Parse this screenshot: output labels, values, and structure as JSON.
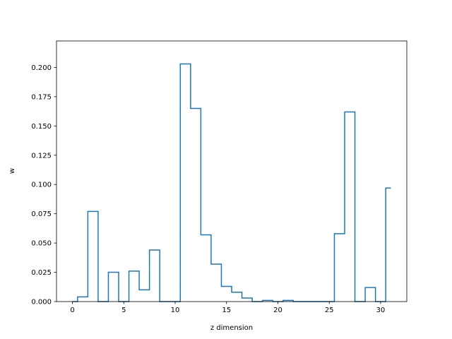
{
  "chart_data": {
    "type": "line",
    "drawstyle": "steps-mid",
    "xlabel": "z dimension",
    "ylabel": "w",
    "xlim": [
      -1.55,
      32.55
    ],
    "ylim": [
      0.0,
      0.2226
    ],
    "xticks": [
      0,
      5,
      10,
      15,
      20,
      25,
      30
    ],
    "yticks": [
      0.0,
      0.025,
      0.05,
      0.075,
      0.1,
      0.125,
      0.15,
      0.175,
      0.2
    ],
    "ytick_labels": [
      "0.000",
      "0.025",
      "0.050",
      "0.075",
      "0.100",
      "0.125",
      "0.150",
      "0.175",
      "0.200"
    ],
    "grid": false,
    "line_color": "#1f77b4",
    "series": [
      {
        "x": [
          0,
          1,
          2,
          3,
          4,
          5,
          6,
          7,
          8,
          9,
          10,
          11,
          12,
          13,
          14,
          15,
          16,
          17,
          18,
          19,
          20,
          21,
          22,
          23,
          24,
          25,
          26,
          27,
          28,
          29,
          30,
          31
        ],
        "values": [
          0.0,
          0.004,
          0.077,
          0.0,
          0.025,
          0.0,
          0.026,
          0.01,
          0.044,
          0.0,
          0.0,
          0.203,
          0.165,
          0.057,
          0.032,
          0.013,
          0.008,
          0.003,
          0.0,
          0.001,
          0.0,
          0.001,
          0.0,
          0.0,
          0.0,
          0.0,
          0.058,
          0.162,
          0.0,
          0.012,
          0.0,
          0.097
        ]
      }
    ]
  }
}
